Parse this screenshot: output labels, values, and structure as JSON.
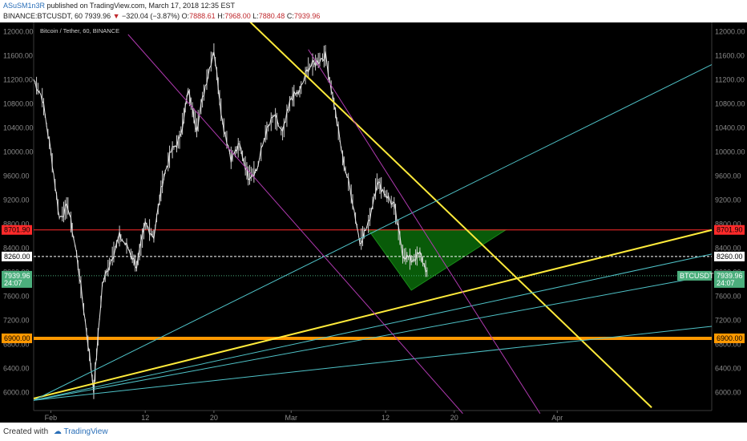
{
  "header": {
    "author": "ASuSM1n3R",
    "published_text": " published on TradingView.com, March 17, 2018 12:35 EST",
    "symbol": "BINANCE:BTCUSDT, 60",
    "last": "7939.96",
    "change": "−320.04 (−3.87%)",
    "o_label": "O:",
    "o": "7888.61",
    "h_label": "H:",
    "h": "7968.00",
    "l_label": "L:",
    "l": "7880.48",
    "c_label": "C:",
    "c": "7939.96"
  },
  "chart_title": "Bitcoin / Tether, 60, BINANCE",
  "footer": {
    "created_with": "Created with",
    "brand": "TradingView"
  },
  "colors": {
    "background": "#000000",
    "resistance": "#ff2a2a",
    "support_orange": "#ff9800",
    "yellow": "#ffeb3b",
    "cyan": "#4fc3c8",
    "magenta": "#b03ab0",
    "triangle_fill": "#0b6b0b",
    "current_price": "#4caf7d"
  },
  "chart_data": {
    "type": "line",
    "symbol": "BTCUSDT",
    "ylim": [
      5700,
      12150
    ],
    "y_ticks": [
      "12000.00",
      "11600.00",
      "11200.00",
      "10800.00",
      "10400.00",
      "10000.00",
      "9600.00",
      "9200.00",
      "8800.00",
      "8400.00",
      "8000.00",
      "7600.00",
      "7200.00",
      "6800.00",
      "6400.00",
      "6000.00"
    ],
    "x_ticks": [
      "Feb",
      "12",
      "20",
      "Mar",
      "12",
      "20",
      "Apr"
    ],
    "x_range_days": [
      "2018-01-30",
      "2018-04-19"
    ],
    "price_path": [
      {
        "d": "2018-01-30",
        "p": 11200
      },
      {
        "d": "2018-01-31",
        "p": 10900
      },
      {
        "d": "2018-02-01",
        "p": 10000
      },
      {
        "d": "2018-02-02",
        "p": 8900
      },
      {
        "d": "2018-02-03",
        "p": 9100
      },
      {
        "d": "2018-02-04",
        "p": 8300
      },
      {
        "d": "2018-02-05",
        "p": 7200
      },
      {
        "d": "2018-02-06",
        "p": 6050
      },
      {
        "d": "2018-02-07",
        "p": 7800
      },
      {
        "d": "2018-02-08",
        "p": 8200
      },
      {
        "d": "2018-02-09",
        "p": 8600
      },
      {
        "d": "2018-02-10",
        "p": 8400
      },
      {
        "d": "2018-02-11",
        "p": 8100
      },
      {
        "d": "2018-02-12",
        "p": 8800
      },
      {
        "d": "2018-02-13",
        "p": 8600
      },
      {
        "d": "2018-02-14",
        "p": 9500
      },
      {
        "d": "2018-02-15",
        "p": 10000
      },
      {
        "d": "2018-02-16",
        "p": 10200
      },
      {
        "d": "2018-02-17",
        "p": 11000
      },
      {
        "d": "2018-02-18",
        "p": 10400
      },
      {
        "d": "2018-02-19",
        "p": 11100
      },
      {
        "d": "2018-02-20",
        "p": 11700
      },
      {
        "d": "2018-02-21",
        "p": 10500
      },
      {
        "d": "2018-02-22",
        "p": 9900
      },
      {
        "d": "2018-02-23",
        "p": 10100
      },
      {
        "d": "2018-02-24",
        "p": 9600
      },
      {
        "d": "2018-02-25",
        "p": 9700
      },
      {
        "d": "2018-02-26",
        "p": 10300
      },
      {
        "d": "2018-02-27",
        "p": 10600
      },
      {
        "d": "2018-02-28",
        "p": 10300
      },
      {
        "d": "2018-03-01",
        "p": 10900
      },
      {
        "d": "2018-03-02",
        "p": 11000
      },
      {
        "d": "2018-03-03",
        "p": 11400
      },
      {
        "d": "2018-03-04",
        "p": 11500
      },
      {
        "d": "2018-03-05",
        "p": 11600
      },
      {
        "d": "2018-03-06",
        "p": 10800
      },
      {
        "d": "2018-03-07",
        "p": 9900
      },
      {
        "d": "2018-03-08",
        "p": 9300
      },
      {
        "d": "2018-03-09",
        "p": 8500
      },
      {
        "d": "2018-03-10",
        "p": 8800
      },
      {
        "d": "2018-03-11",
        "p": 9500
      },
      {
        "d": "2018-03-12",
        "p": 9300
      },
      {
        "d": "2018-03-13",
        "p": 9100
      },
      {
        "d": "2018-03-14",
        "p": 8300
      },
      {
        "d": "2018-03-15",
        "p": 8200
      },
      {
        "d": "2018-03-16",
        "p": 8300
      },
      {
        "d": "2018-03-17",
        "p": 7940
      }
    ],
    "horizontal_levels": [
      {
        "price": 8701.9,
        "label": "8701.90",
        "color": "#ff2a2a",
        "style": "solid"
      },
      {
        "price": 8260.0,
        "label": "8260.00",
        "color": "#ffffff",
        "style": "dashed"
      },
      {
        "price": 7939.96,
        "label": "7939.96",
        "color": "#4caf7d",
        "style": "dotted"
      },
      {
        "price": 6900.0,
        "label": "6900.00",
        "color": "#ff9800",
        "style": "solid"
      }
    ],
    "trendlines": [
      {
        "color": "#ffeb3b",
        "width": 2,
        "from": {
          "d": "2018-02-21",
          "p": 12600
        },
        "to": {
          "d": "2018-04-12",
          "p": 5750
        }
      },
      {
        "color": "#ffeb3b",
        "width": 2,
        "from": {
          "d": "2018-01-30",
          "p": 5900
        },
        "to": {
          "d": "2018-04-19",
          "p": 8700
        }
      },
      {
        "color": "#4fc3c8",
        "width": 1,
        "from": {
          "d": "2018-01-30",
          "p": 5870
        },
        "to": {
          "d": "2018-04-19",
          "p": 11450
        }
      },
      {
        "color": "#4fc3c8",
        "width": 1,
        "from": {
          "d": "2018-01-30",
          "p": 5870
        },
        "to": {
          "d": "2018-04-19",
          "p": 8300
        }
      },
      {
        "color": "#4fc3c8",
        "width": 1,
        "from": {
          "d": "2018-01-30",
          "p": 5870
        },
        "to": {
          "d": "2018-04-19",
          "p": 7950
        }
      },
      {
        "color": "#4fc3c8",
        "width": 1,
        "from": {
          "d": "2018-01-30",
          "p": 5870
        },
        "to": {
          "d": "2018-04-19",
          "p": 7100
        }
      },
      {
        "color": "#b03ab0",
        "width": 1,
        "from": {
          "d": "2018-02-10",
          "p": 11950
        },
        "to": {
          "d": "2018-03-21",
          "p": 5650
        }
      },
      {
        "color": "#b03ab0",
        "width": 1,
        "from": {
          "d": "2018-03-03",
          "p": 11700
        },
        "to": {
          "d": "2018-03-30",
          "p": 5650
        }
      }
    ],
    "triangle": {
      "color": "#0b6b0b",
      "points": [
        {
          "d": "2018-03-10",
          "p": 8701.9
        },
        {
          "d": "2018-03-26",
          "p": 8701.9
        },
        {
          "d": "2018-03-15",
          "p": 7700
        }
      ]
    },
    "badges_left": [
      {
        "text": "8701.90",
        "price": 8701.9,
        "bg": "#ff2a2a",
        "fg": "#000000"
      },
      {
        "text": "8260.00",
        "price": 8260.0,
        "bg": "#ffffff",
        "fg": "#000000"
      },
      {
        "text": "7939.96",
        "price": 7939.96,
        "bg": "#4caf7d",
        "fg": "#ffffff"
      },
      {
        "text": "24:07",
        "price": 7820,
        "bg": "#4caf7d",
        "fg": "#ffffff"
      },
      {
        "text": "6900.00",
        "price": 6900.0,
        "bg": "#ff9800",
        "fg": "#000000"
      }
    ],
    "badges_right": [
      {
        "text": "8701.90",
        "price": 8701.9,
        "bg": "#ff2a2a",
        "fg": "#000000"
      },
      {
        "text": "8260.00",
        "price": 8260.0,
        "bg": "#ffffff",
        "fg": "#000000"
      },
      {
        "text": "7939.96",
        "price": 7939.96,
        "bg": "#4caf7d",
        "fg": "#ffffff"
      },
      {
        "text": "24:07",
        "price": 7820,
        "bg": "#4caf7d",
        "fg": "#ffffff"
      },
      {
        "text": "6900.00",
        "price": 6900.0,
        "bg": "#ff9800",
        "fg": "#000000"
      }
    ],
    "symbol_tag": {
      "text": "BTCUSDT",
      "price": 7939.96
    }
  }
}
